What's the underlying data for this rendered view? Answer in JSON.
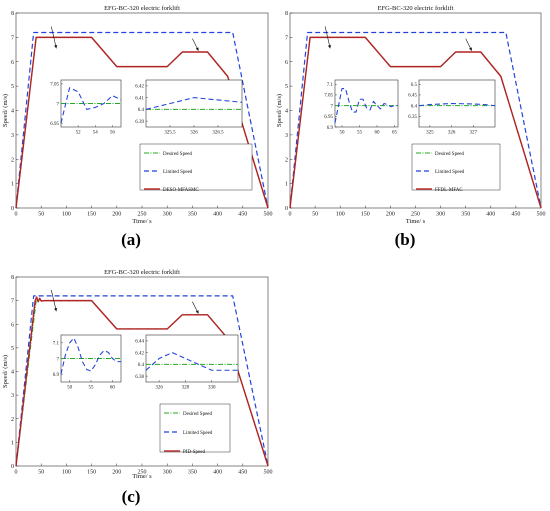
{
  "figure": {
    "panels": [
      {
        "letter": "(a)",
        "title": "EFG-BC-320 electric forklift",
        "xlabel": "Time/ s",
        "ylabel": "Speed/ (m/s)",
        "legend": [
          "Desired Speed",
          "Limited Speed",
          "DESO-MFASMC"
        ]
      },
      {
        "letter": "(b)",
        "title": "EFG-BC-320 electric forklift",
        "xlabel": "Time/ s",
        "ylabel": "Speed/ (m/s)",
        "legend": [
          "Desired Speed",
          "Limited Speed",
          "FFDL-MFAC"
        ]
      },
      {
        "letter": "(c)",
        "title": "EFG-BC-320 electric forklift",
        "xlabel": "Time/ s",
        "ylabel": "Speed/ (m/s)",
        "legend": [
          "Desired Speed",
          "Limited Speed",
          "PID-Speed"
        ]
      }
    ]
  },
  "colors": {
    "desired": "#22aa22",
    "limited": "#2244dd",
    "controller": "#b22222",
    "axis": "#333333"
  },
  "chart_data": [
    {
      "type": "line",
      "title": "EFG-BC-320 electric forklift",
      "xlabel": "Time/ s",
      "ylabel": "Speed/ (m/s)",
      "xlim": [
        0,
        500
      ],
      "ylim": [
        0,
        8
      ],
      "xticks": [
        0,
        50,
        100,
        150,
        200,
        250,
        300,
        350,
        400,
        450,
        500
      ],
      "yticks": [
        0,
        1,
        2,
        3,
        4,
        5,
        6,
        7,
        8
      ],
      "series": [
        {
          "name": "Desired Speed",
          "style": "dash-dot",
          "x": [
            0,
            40,
            150,
            200,
            300,
            330,
            380,
            420,
            500
          ],
          "y": [
            0,
            7,
            7,
            5.8,
            5.8,
            6.4,
            6.4,
            5.4,
            0
          ]
        },
        {
          "name": "Limited Speed",
          "style": "dashed",
          "x": [
            0,
            35,
            430,
            500
          ],
          "y": [
            0,
            7.2,
            7.2,
            0
          ]
        },
        {
          "name": "DESO-MFASMC",
          "style": "solid",
          "x": [
            0,
            40,
            150,
            200,
            300,
            330,
            380,
            420,
            500
          ],
          "y": [
            0,
            7,
            7,
            5.8,
            5.8,
            6.4,
            6.4,
            5.4,
            0
          ]
        }
      ],
      "insets": [
        {
          "xlim": [
            50,
            57
          ],
          "ylim": [
            6.94,
            7.06
          ],
          "xticks": [
            52,
            54,
            56
          ],
          "yticks": [
            6.95,
            7,
            7.05
          ],
          "series": [
            {
              "name": "Desired Speed",
              "x": [
                50,
                57
              ],
              "y": [
                7,
                7
              ]
            },
            {
              "name": "DESO-MFASMC",
              "x": [
                50,
                51,
                52,
                53,
                54,
                55,
                56,
                57
              ],
              "y": [
                6.95,
                7.04,
                7.03,
                6.985,
                6.99,
                7.0,
                7.02,
                7.01
              ]
            }
          ]
        },
        {
          "xlim": [
            325,
            327
          ],
          "ylim": [
            6.385,
            6.425
          ],
          "xticks": [
            325.5,
            326,
            326.5
          ],
          "yticks": [
            6.39,
            6.4,
            6.41,
            6.42
          ],
          "series": [
            {
              "name": "Desired Speed",
              "x": [
                325,
                327
              ],
              "y": [
                6.4,
                6.4
              ]
            },
            {
              "name": "DESO-MFASMC",
              "x": [
                325,
                325.5,
                326,
                326.5,
                327
              ],
              "y": [
                6.4,
                6.405,
                6.41,
                6.408,
                6.406
              ]
            }
          ]
        }
      ]
    },
    {
      "type": "line",
      "title": "EFG-BC-320 electric forklift",
      "xlabel": "Time/ s",
      "ylabel": "Speed/ (m/s)",
      "xlim": [
        0,
        500
      ],
      "ylim": [
        0,
        8
      ],
      "xticks": [
        0,
        50,
        100,
        150,
        200,
        250,
        300,
        350,
        400,
        450,
        500
      ],
      "yticks": [
        0,
        1,
        2,
        3,
        4,
        5,
        6,
        7,
        8
      ],
      "series": [
        {
          "name": "Desired Speed",
          "style": "dash-dot",
          "x": [
            0,
            40,
            150,
            200,
            300,
            330,
            380,
            420,
            500
          ],
          "y": [
            0,
            7,
            7,
            5.8,
            5.8,
            6.4,
            6.4,
            5.4,
            0
          ]
        },
        {
          "name": "Limited Speed",
          "style": "dashed",
          "x": [
            0,
            35,
            430,
            500
          ],
          "y": [
            0,
            7.2,
            7.2,
            0
          ]
        },
        {
          "name": "FFDL-MFAC",
          "style": "solid",
          "x": [
            0,
            40,
            150,
            200,
            300,
            330,
            380,
            420,
            500
          ],
          "y": [
            0,
            7,
            7,
            5.8,
            5.8,
            6.4,
            6.4,
            5.4,
            0
          ]
        }
      ],
      "insets": [
        {
          "xlim": [
            48,
            66
          ],
          "ylim": [
            6.9,
            7.12
          ],
          "xticks": [
            50,
            55,
            60,
            65
          ],
          "yticks": [
            6.9,
            6.95,
            7,
            7.05,
            7.1
          ],
          "series": [
            {
              "name": "Desired Speed",
              "x": [
                48,
                66
              ],
              "y": [
                7,
                7
              ]
            },
            {
              "name": "FFDL-MFAC",
              "x": [
                48,
                50,
                51,
                52,
                53,
                54,
                55,
                56,
                57,
                58,
                59,
                60,
                61,
                62,
                63,
                64,
                65,
                66
              ],
              "y": [
                6.92,
                7.08,
                7.08,
                7.02,
                6.97,
                6.97,
                7.03,
                7.03,
                6.99,
                6.98,
                7.02,
                7.0,
                6.985,
                7.01,
                7.005,
                6.995,
                7.0,
                7.0
              ]
            }
          ]
        },
        {
          "xlim": [
            324.5,
            328
          ],
          "ylim": [
            6.3,
            6.52
          ],
          "xticks": [
            325,
            326,
            327
          ],
          "yticks": [
            6.35,
            6.4,
            6.45,
            6.5
          ],
          "series": [
            {
              "name": "Desired Speed",
              "x": [
                324.5,
                328
              ],
              "y": [
                6.4,
                6.4
              ]
            },
            {
              "name": "FFDL-MFAC",
              "x": [
                324.5,
                325,
                326,
                327,
                327.5,
                328
              ],
              "y": [
                6.4,
                6.405,
                6.41,
                6.408,
                6.405,
                6.4
              ]
            }
          ]
        }
      ]
    },
    {
      "type": "line",
      "title": "EFG-BC-320 electric forklift",
      "xlabel": "Time/ s",
      "ylabel": "Speed/ (m/s)",
      "xlim": [
        0,
        500
      ],
      "ylim": [
        0,
        8
      ],
      "xticks": [
        0,
        50,
        100,
        150,
        200,
        250,
        300,
        350,
        400,
        450,
        500
      ],
      "yticks": [
        0,
        1,
        2,
        3,
        4,
        5,
        6,
        7,
        8
      ],
      "series": [
        {
          "name": "Desired Speed",
          "style": "dash-dot",
          "x": [
            0,
            40,
            150,
            200,
            300,
            330,
            380,
            420,
            500
          ],
          "y": [
            0,
            7,
            7,
            5.8,
            5.8,
            6.4,
            6.4,
            5.4,
            0
          ]
        },
        {
          "name": "Limited Speed",
          "style": "dashed",
          "x": [
            0,
            35,
            430,
            500
          ],
          "y": [
            0,
            7.2,
            7.2,
            0
          ]
        },
        {
          "name": "PID-Speed",
          "style": "solid",
          "x": [
            0,
            38,
            41,
            44,
            47,
            50,
            55,
            150,
            200,
            300,
            330,
            380,
            420,
            500
          ],
          "y": [
            0,
            7,
            7.15,
            6.95,
            7.1,
            6.98,
            7.0,
            7,
            5.8,
            5.8,
            6.4,
            6.4,
            5.4,
            0
          ]
        }
      ],
      "insets": [
        {
          "xlim": [
            48,
            62
          ],
          "ylim": [
            6.85,
            7.15
          ],
          "xticks": [
            50,
            55,
            60
          ],
          "yticks": [
            6.9,
            7,
            7.1
          ],
          "series": [
            {
              "name": "Desired Speed",
              "x": [
                48,
                62
              ],
              "y": [
                7,
                7
              ]
            },
            {
              "name": "PID-Speed",
              "x": [
                48,
                49,
                50,
                51,
                52,
                53,
                54,
                55,
                56,
                57,
                58,
                59,
                60,
                61,
                62
              ],
              "y": [
                6.9,
                7.02,
                7.1,
                7.13,
                7.07,
                6.98,
                6.93,
                6.92,
                6.96,
                7.02,
                7.05,
                7.04,
                7.0,
                6.98,
                6.98
              ]
            }
          ]
        },
        {
          "xlim": [
            325,
            332
          ],
          "ylim": [
            6.37,
            6.45
          ],
          "xticks": [
            326,
            328,
            330
          ],
          "yticks": [
            6.38,
            6.4,
            6.42,
            6.44
          ],
          "series": [
            {
              "name": "Desired Speed",
              "x": [
                325,
                332
              ],
              "y": [
                6.4,
                6.4
              ]
            },
            {
              "name": "PID-Speed",
              "x": [
                325,
                326,
                327,
                328,
                329,
                330,
                331,
                332
              ],
              "y": [
                6.39,
                6.41,
                6.42,
                6.41,
                6.4,
                6.39,
                6.39,
                6.39
              ]
            }
          ]
        }
      ]
    }
  ]
}
